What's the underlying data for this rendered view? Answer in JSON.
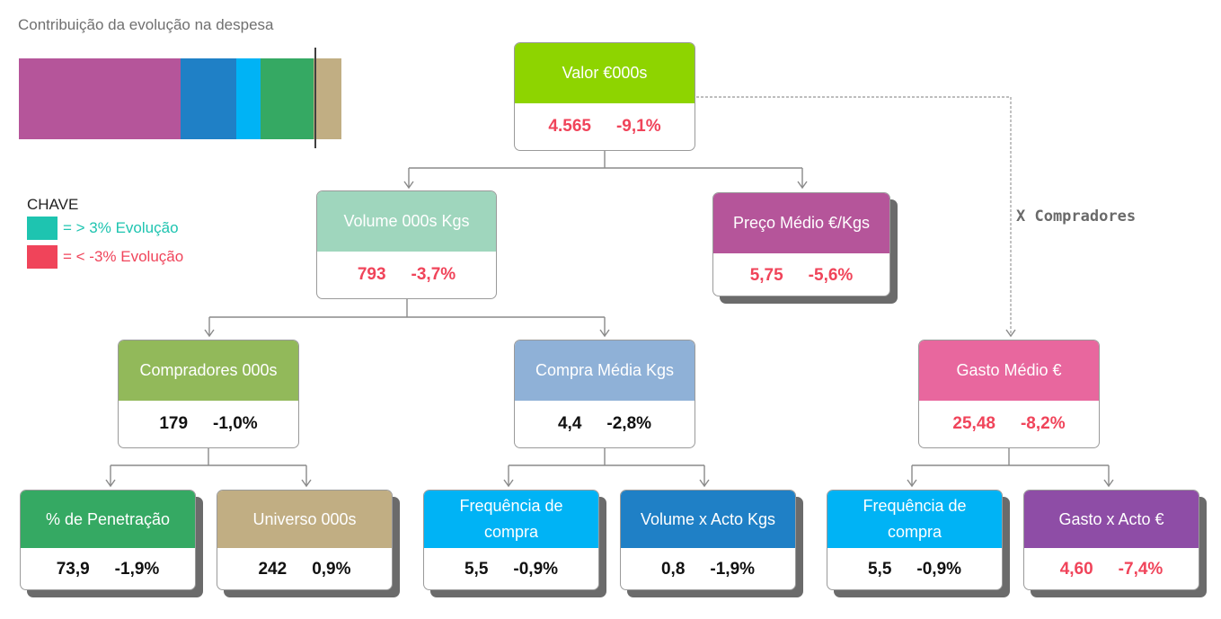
{
  "title": "Contribuição da evolução na despesa",
  "contribution_bar": [
    {
      "color": "#b5559a",
      "share": 0.5
    },
    {
      "color": "#1f80c6",
      "share": 0.175
    },
    {
      "color": "#00b3f5",
      "share": 0.075
    },
    {
      "color": "#35a963",
      "share": 0.165
    },
    {
      "color": "#c1ae83",
      "share": 0.085
    }
  ],
  "key": {
    "header": "CHAVE",
    "positive": {
      "label": "= > 3% Evolução",
      "color": "#1ec4b0"
    },
    "negative": {
      "label": "= < -3% Evolução",
      "color": "#f0445a"
    }
  },
  "multiplier_label": "X Compradores",
  "nodes": {
    "valor": {
      "label": "Valor €000s",
      "value": "4.565",
      "change": "-9,1%",
      "color": "#8ed400"
    },
    "volume": {
      "label": "Volume 000s Kgs",
      "value": "793",
      "change": "-3,7%",
      "color": "#9fd6bd"
    },
    "preco": {
      "label": "Preço Médio €/Kgs",
      "value": "5,75",
      "change": "-5,6%",
      "color": "#b5559a"
    },
    "compradores": {
      "label": "Compradores 000s",
      "value": "179",
      "change": "-1,0%",
      "color": "#92b95a"
    },
    "compra_media": {
      "label": "Compra Média Kgs",
      "value": "4,4",
      "change": "-2,8%",
      "color": "#8fb1d7"
    },
    "gasto_medio": {
      "label": "Gasto Médio €",
      "value": "25,48",
      "change": "-8,2%",
      "color": "#e8679e"
    },
    "penetracao": {
      "label": "% de Penetração",
      "value": "73,9",
      "change": "-1,9%",
      "color": "#35a963"
    },
    "universo": {
      "label": "Universo 000s",
      "value": "242",
      "change": "0,9%",
      "color": "#c1ae83"
    },
    "frequencia1": {
      "label": "Frequência de compra",
      "value": "5,5",
      "change": "-0,9%",
      "color": "#00b3f5"
    },
    "volume_acto": {
      "label": "Volume x Acto Kgs",
      "value": "0,8",
      "change": "-1,9%",
      "color": "#1f80c6"
    },
    "frequencia2": {
      "label": "Frequência de compra",
      "value": "5,5",
      "change": "-0,9%",
      "color": "#00b3f5"
    },
    "gasto_acto": {
      "label": "Gasto x Acto €",
      "value": "4,60",
      "change": "-7,4%",
      "color": "#8e4da6"
    }
  }
}
